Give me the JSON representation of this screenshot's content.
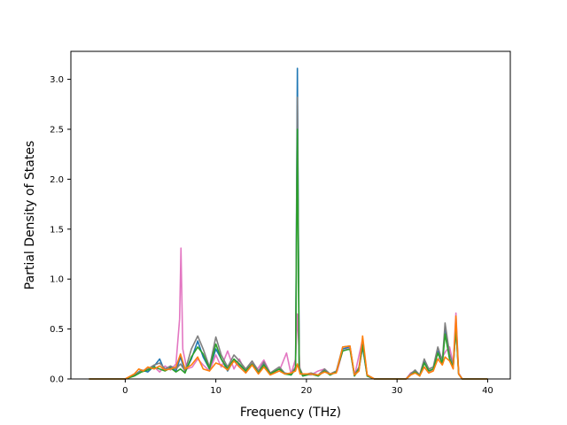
{
  "chart_data": {
    "type": "line",
    "title": "",
    "xlabel": "Frequency (THz)",
    "ylabel": "Partial Density of States",
    "xlim": [
      -6.0,
      42.5
    ],
    "ylim": [
      0.0,
      3.28
    ],
    "xticks": [
      0,
      10,
      20,
      30,
      40
    ],
    "xtick_labels": [
      "0",
      "10",
      "20",
      "30",
      "40"
    ],
    "yticks": [
      0.0,
      0.5,
      1.0,
      1.5,
      2.0,
      2.5,
      3.0
    ],
    "ytick_labels": [
      "0.0",
      "0.5",
      "1.0",
      "1.5",
      "2.0",
      "2.5",
      "3.0"
    ],
    "grid": false,
    "legend": "none",
    "series": [
      {
        "color": "#1f77b4",
        "points": [
          [
            -4,
            0
          ],
          [
            0,
            0
          ],
          [
            1,
            0.04
          ],
          [
            1.8,
            0.09
          ],
          [
            2.5,
            0.07
          ],
          [
            3.2,
            0.13
          ],
          [
            3.8,
            0.2
          ],
          [
            4.3,
            0.09
          ],
          [
            5,
            0.12
          ],
          [
            5.6,
            0.08
          ],
          [
            6.1,
            0.22
          ],
          [
            6.6,
            0.07
          ],
          [
            7.3,
            0.2
          ],
          [
            8,
            0.38
          ],
          [
            8.6,
            0.22
          ],
          [
            9.3,
            0.1
          ],
          [
            10,
            0.3
          ],
          [
            10.6,
            0.2
          ],
          [
            11.3,
            0.08
          ],
          [
            12,
            0.19
          ],
          [
            12.6,
            0.14
          ],
          [
            13.3,
            0.08
          ],
          [
            14,
            0.16
          ],
          [
            14.7,
            0.07
          ],
          [
            15.3,
            0.15
          ],
          [
            16,
            0.05
          ],
          [
            17,
            0.1
          ],
          [
            17.6,
            0.06
          ],
          [
            18.3,
            0.04
          ],
          [
            18.8,
            0.1
          ],
          [
            19.0,
            3.11
          ],
          [
            19.2,
            0.1
          ],
          [
            19.6,
            0.03
          ],
          [
            20.5,
            0.05
          ],
          [
            21.3,
            0.03
          ],
          [
            22,
            0.09
          ],
          [
            22.6,
            0.04
          ],
          [
            23.3,
            0.07
          ],
          [
            24,
            0.3
          ],
          [
            24.8,
            0.32
          ],
          [
            25.3,
            0.03
          ],
          [
            25.8,
            0.1
          ],
          [
            26.2,
            0.32
          ],
          [
            26.7,
            0.03
          ],
          [
            27.5,
            0
          ],
          [
            31,
            0
          ],
          [
            31.5,
            0.05
          ],
          [
            32,
            0.07
          ],
          [
            32.5,
            0.03
          ],
          [
            33,
            0.17
          ],
          [
            33.5,
            0.08
          ],
          [
            34,
            0.1
          ],
          [
            34.5,
            0.28
          ],
          [
            35,
            0.16
          ],
          [
            35.3,
            0.5
          ],
          [
            35.8,
            0.2
          ],
          [
            36.2,
            0.12
          ],
          [
            36.5,
            0.52
          ],
          [
            36.8,
            0.05
          ],
          [
            37.2,
            0
          ],
          [
            40,
            0
          ]
        ]
      },
      {
        "color": "#e377c2",
        "points": [
          [
            -4,
            0
          ],
          [
            0,
            0
          ],
          [
            1,
            0.03
          ],
          [
            1.8,
            0.08
          ],
          [
            2.5,
            0.1
          ],
          [
            3.2,
            0.12
          ],
          [
            3.8,
            0.07
          ],
          [
            4.4,
            0.13
          ],
          [
            5,
            0.09
          ],
          [
            5.6,
            0.15
          ],
          [
            6.0,
            0.6
          ],
          [
            6.15,
            1.31
          ],
          [
            6.35,
            0.3
          ],
          [
            6.8,
            0.1
          ],
          [
            7.4,
            0.12
          ],
          [
            8,
            0.2
          ],
          [
            8.6,
            0.14
          ],
          [
            9.3,
            0.08
          ],
          [
            10,
            0.24
          ],
          [
            10.6,
            0.12
          ],
          [
            11.3,
            0.28
          ],
          [
            12,
            0.1
          ],
          [
            12.6,
            0.2
          ],
          [
            13.3,
            0.06
          ],
          [
            14,
            0.17
          ],
          [
            14.6,
            0.1
          ],
          [
            15.3,
            0.19
          ],
          [
            16,
            0.06
          ],
          [
            17,
            0.08
          ],
          [
            17.8,
            0.26
          ],
          [
            18.3,
            0.05
          ],
          [
            18.8,
            0.2
          ],
          [
            19.0,
            0.65
          ],
          [
            19.3,
            0.05
          ],
          [
            20.5,
            0.04
          ],
          [
            21.3,
            0.08
          ],
          [
            22,
            0.1
          ],
          [
            22.6,
            0.04
          ],
          [
            23.4,
            0.08
          ],
          [
            24,
            0.28
          ],
          [
            24.8,
            0.31
          ],
          [
            25.3,
            0.03
          ],
          [
            26.2,
            0.4
          ],
          [
            26.7,
            0.03
          ],
          [
            27.5,
            0
          ],
          [
            31,
            0
          ],
          [
            31.5,
            0.06
          ],
          [
            32,
            0.08
          ],
          [
            32.5,
            0.04
          ],
          [
            33,
            0.12
          ],
          [
            33.5,
            0.06
          ],
          [
            34,
            0.1
          ],
          [
            34.5,
            0.2
          ],
          [
            35,
            0.22
          ],
          [
            35.4,
            0.28
          ],
          [
            35.8,
            0.32
          ],
          [
            36.2,
            0.15
          ],
          [
            36.5,
            0.66
          ],
          [
            36.8,
            0.06
          ],
          [
            37.2,
            0
          ],
          [
            40,
            0
          ]
        ]
      },
      {
        "color": "#7f7f7f",
        "points": [
          [
            -4,
            0
          ],
          [
            0,
            0
          ],
          [
            1,
            0.04
          ],
          [
            1.8,
            0.08
          ],
          [
            2.5,
            0.1
          ],
          [
            3.2,
            0.14
          ],
          [
            3.8,
            0.16
          ],
          [
            4.4,
            0.1
          ],
          [
            5,
            0.13
          ],
          [
            5.6,
            0.1
          ],
          [
            6.1,
            0.15
          ],
          [
            6.6,
            0.08
          ],
          [
            7.3,
            0.3
          ],
          [
            8,
            0.43
          ],
          [
            8.6,
            0.3
          ],
          [
            9.3,
            0.12
          ],
          [
            10,
            0.42
          ],
          [
            10.6,
            0.24
          ],
          [
            11.3,
            0.12
          ],
          [
            12,
            0.24
          ],
          [
            12.6,
            0.18
          ],
          [
            13.3,
            0.1
          ],
          [
            14,
            0.18
          ],
          [
            14.7,
            0.08
          ],
          [
            15.3,
            0.17
          ],
          [
            16,
            0.06
          ],
          [
            17,
            0.12
          ],
          [
            17.6,
            0.06
          ],
          [
            18.3,
            0.05
          ],
          [
            18.8,
            0.12
          ],
          [
            19.0,
            2.82
          ],
          [
            19.2,
            0.12
          ],
          [
            19.6,
            0.04
          ],
          [
            20.5,
            0.06
          ],
          [
            21.3,
            0.04
          ],
          [
            22,
            0.1
          ],
          [
            22.6,
            0.05
          ],
          [
            23.3,
            0.08
          ],
          [
            24,
            0.32
          ],
          [
            24.8,
            0.33
          ],
          [
            25.3,
            0.04
          ],
          [
            25.8,
            0.12
          ],
          [
            26.2,
            0.37
          ],
          [
            26.7,
            0.04
          ],
          [
            27.5,
            0
          ],
          [
            31,
            0
          ],
          [
            31.5,
            0.05
          ],
          [
            32,
            0.09
          ],
          [
            32.5,
            0.04
          ],
          [
            33,
            0.2
          ],
          [
            33.5,
            0.1
          ],
          [
            34,
            0.12
          ],
          [
            34.5,
            0.32
          ],
          [
            35,
            0.18
          ],
          [
            35.3,
            0.56
          ],
          [
            35.8,
            0.25
          ],
          [
            36.2,
            0.14
          ],
          [
            36.5,
            0.58
          ],
          [
            36.8,
            0.05
          ],
          [
            37.2,
            0
          ],
          [
            40,
            0
          ]
        ]
      },
      {
        "color": "#2ca02c",
        "points": [
          [
            -4,
            0
          ],
          [
            0,
            0
          ],
          [
            1,
            0.03
          ],
          [
            1.8,
            0.07
          ],
          [
            2.5,
            0.09
          ],
          [
            3.2,
            0.12
          ],
          [
            3.8,
            0.1
          ],
          [
            4.4,
            0.08
          ],
          [
            5,
            0.11
          ],
          [
            5.6,
            0.07
          ],
          [
            6.1,
            0.1
          ],
          [
            6.6,
            0.06
          ],
          [
            7.3,
            0.22
          ],
          [
            8,
            0.32
          ],
          [
            8.6,
            0.25
          ],
          [
            9.3,
            0.1
          ],
          [
            10,
            0.35
          ],
          [
            10.6,
            0.2
          ],
          [
            11.3,
            0.1
          ],
          [
            12,
            0.2
          ],
          [
            12.6,
            0.15
          ],
          [
            13.3,
            0.08
          ],
          [
            14,
            0.15
          ],
          [
            14.7,
            0.06
          ],
          [
            15.3,
            0.14
          ],
          [
            16,
            0.05
          ],
          [
            17,
            0.1
          ],
          [
            17.6,
            0.05
          ],
          [
            18.3,
            0.04
          ],
          [
            18.8,
            0.1
          ],
          [
            19.0,
            2.5
          ],
          [
            19.2,
            0.1
          ],
          [
            19.6,
            0.03
          ],
          [
            20.5,
            0.05
          ],
          [
            21.3,
            0.03
          ],
          [
            22,
            0.08
          ],
          [
            22.6,
            0.04
          ],
          [
            23.3,
            0.07
          ],
          [
            24,
            0.28
          ],
          [
            24.8,
            0.3
          ],
          [
            25.3,
            0.03
          ],
          [
            25.8,
            0.1
          ],
          [
            26.2,
            0.34
          ],
          [
            26.7,
            0.03
          ],
          [
            27.5,
            0
          ],
          [
            31,
            0
          ],
          [
            31.5,
            0.04
          ],
          [
            32,
            0.07
          ],
          [
            32.5,
            0.03
          ],
          [
            33,
            0.16
          ],
          [
            33.5,
            0.08
          ],
          [
            34,
            0.1
          ],
          [
            34.5,
            0.26
          ],
          [
            35,
            0.15
          ],
          [
            35.3,
            0.45
          ],
          [
            35.8,
            0.2
          ],
          [
            36.2,
            0.12
          ],
          [
            36.5,
            0.5
          ],
          [
            36.8,
            0.05
          ],
          [
            37.2,
            0
          ],
          [
            40,
            0
          ]
        ]
      },
      {
        "color": "#ff7f0e",
        "points": [
          [
            -4,
            0
          ],
          [
            0,
            0
          ],
          [
            1,
            0.05
          ],
          [
            1.5,
            0.1
          ],
          [
            2,
            0.08
          ],
          [
            2.5,
            0.12
          ],
          [
            3.2,
            0.1
          ],
          [
            3.8,
            0.13
          ],
          [
            4.4,
            0.09
          ],
          [
            5,
            0.1
          ],
          [
            5.6,
            0.12
          ],
          [
            6.1,
            0.25
          ],
          [
            6.6,
            0.1
          ],
          [
            7.3,
            0.14
          ],
          [
            8,
            0.22
          ],
          [
            8.6,
            0.1
          ],
          [
            9.3,
            0.08
          ],
          [
            10,
            0.16
          ],
          [
            10.6,
            0.14
          ],
          [
            11.3,
            0.09
          ],
          [
            12,
            0.18
          ],
          [
            12.6,
            0.12
          ],
          [
            13.3,
            0.06
          ],
          [
            14,
            0.14
          ],
          [
            14.7,
            0.05
          ],
          [
            15.3,
            0.12
          ],
          [
            16,
            0.04
          ],
          [
            17,
            0.08
          ],
          [
            17.6,
            0.05
          ],
          [
            18.3,
            0.06
          ],
          [
            18.8,
            0.08
          ],
          [
            19.0,
            0.15
          ],
          [
            19.3,
            0.05
          ],
          [
            20.5,
            0.05
          ],
          [
            21.3,
            0.04
          ],
          [
            22,
            0.07
          ],
          [
            22.6,
            0.05
          ],
          [
            23.3,
            0.06
          ],
          [
            24,
            0.32
          ],
          [
            24.8,
            0.33
          ],
          [
            25.3,
            0.04
          ],
          [
            25.8,
            0.08
          ],
          [
            26.2,
            0.43
          ],
          [
            26.7,
            0.04
          ],
          [
            27.5,
            0
          ],
          [
            31,
            0
          ],
          [
            31.5,
            0.04
          ],
          [
            32,
            0.06
          ],
          [
            32.5,
            0.03
          ],
          [
            33,
            0.12
          ],
          [
            33.5,
            0.06
          ],
          [
            34,
            0.08
          ],
          [
            34.5,
            0.2
          ],
          [
            35,
            0.14
          ],
          [
            35.3,
            0.22
          ],
          [
            35.8,
            0.18
          ],
          [
            36.2,
            0.1
          ],
          [
            36.5,
            0.63
          ],
          [
            36.8,
            0.05
          ],
          [
            37.2,
            0
          ],
          [
            40,
            0
          ]
        ]
      }
    ]
  }
}
